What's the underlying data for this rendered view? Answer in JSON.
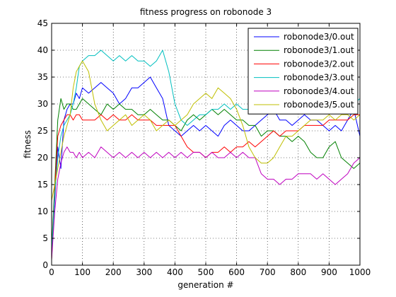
{
  "chart_data": {
    "type": "line",
    "title": "fitness progress on robonode 3",
    "xlabel": "generation #",
    "ylabel": "fitness",
    "xlim": [
      0,
      1000
    ],
    "ylim": [
      0,
      45
    ],
    "xticks": [
      "0",
      "100",
      "200",
      "300",
      "400",
      "500",
      "600",
      "700",
      "800",
      "900",
      "1000"
    ],
    "yticks": [
      "0",
      "5",
      "10",
      "15",
      "20",
      "25",
      "30",
      "35",
      "40",
      "45"
    ],
    "grid": true,
    "legend_position": "top-right",
    "series": [
      {
        "name": "robonode3/0.out",
        "color": "#0000ff",
        "x": [
          0,
          10,
          20,
          30,
          40,
          50,
          60,
          70,
          80,
          90,
          100,
          120,
          140,
          160,
          180,
          200,
          220,
          240,
          260,
          280,
          300,
          320,
          340,
          360,
          380,
          400,
          420,
          440,
          460,
          480,
          500,
          520,
          540,
          560,
          580,
          600,
          620,
          640,
          660,
          680,
          700,
          720,
          740,
          760,
          780,
          800,
          820,
          840,
          860,
          880,
          900,
          920,
          940,
          960,
          980,
          1000
        ],
        "y": [
          2,
          12,
          22,
          18,
          27,
          29,
          30,
          30,
          32,
          31,
          33,
          32,
          33,
          34,
          33,
          32,
          30,
          31,
          33,
          33,
          34,
          35,
          33,
          31,
          26,
          25,
          24,
          25,
          26,
          25,
          26,
          25,
          24,
          26,
          27,
          26,
          25,
          25,
          26,
          27,
          28,
          29,
          27,
          27,
          26,
          27,
          28,
          27,
          27,
          26,
          25,
          26,
          25,
          27,
          29,
          24
        ]
      },
      {
        "name": "robonode3/1.out",
        "color": "#008000",
        "x": [
          0,
          10,
          20,
          30,
          40,
          50,
          60,
          70,
          80,
          90,
          100,
          120,
          140,
          160,
          180,
          200,
          220,
          240,
          260,
          280,
          300,
          320,
          340,
          360,
          380,
          400,
          420,
          440,
          460,
          480,
          500,
          520,
          540,
          560,
          580,
          600,
          620,
          640,
          660,
          680,
          700,
          720,
          740,
          760,
          780,
          800,
          820,
          840,
          860,
          880,
          900,
          920,
          940,
          960,
          980,
          1000
        ],
        "y": [
          3,
          15,
          27,
          31,
          29,
          30,
          30,
          29,
          29,
          30,
          31,
          30,
          29,
          28,
          30,
          29,
          30,
          29,
          29,
          28,
          28,
          29,
          28,
          27,
          27,
          26,
          25,
          27,
          28,
          27,
          28,
          29,
          28,
          29,
          28,
          27,
          27,
          26,
          26,
          24,
          25,
          25,
          24,
          24,
          23,
          24,
          23,
          21,
          20,
          20,
          22,
          23,
          20,
          19,
          18,
          19
        ]
      },
      {
        "name": "robonode3/2.out",
        "color": "#ff0000",
        "x": [
          0,
          10,
          20,
          30,
          40,
          50,
          60,
          70,
          80,
          90,
          100,
          120,
          140,
          160,
          180,
          200,
          220,
          240,
          260,
          280,
          300,
          320,
          340,
          360,
          380,
          400,
          420,
          440,
          460,
          480,
          500,
          520,
          540,
          560,
          580,
          600,
          620,
          640,
          660,
          680,
          700,
          720,
          740,
          760,
          780,
          800,
          820,
          840,
          860,
          880,
          900,
          920,
          940,
          960,
          980,
          1000
        ],
        "y": [
          1,
          14,
          24,
          26,
          27,
          28,
          28,
          27,
          28,
          28,
          27,
          27,
          27,
          28,
          27,
          28,
          27,
          27,
          28,
          27,
          27,
          27,
          26,
          26,
          26,
          26,
          24,
          22,
          21,
          21,
          20,
          21,
          21,
          22,
          21,
          22,
          22,
          23,
          22,
          23,
          24,
          25,
          24,
          25,
          25,
          25,
          26,
          26,
          26,
          26,
          27,
          27,
          27,
          27,
          28,
          28
        ]
      },
      {
        "name": "robonode3/3.out",
        "color": "#00bfbf",
        "x": [
          0,
          10,
          20,
          30,
          40,
          50,
          60,
          70,
          80,
          90,
          100,
          120,
          140,
          160,
          180,
          200,
          220,
          240,
          260,
          280,
          300,
          320,
          340,
          360,
          380,
          400,
          420,
          440,
          460,
          480,
          500,
          520,
          540,
          560,
          580,
          600,
          620,
          640,
          660,
          680,
          700,
          720,
          740,
          760,
          780,
          800,
          820,
          840,
          860,
          880,
          900,
          920,
          940,
          960,
          980,
          1000
        ],
        "y": [
          2,
          13,
          20,
          24,
          26,
          27,
          28,
          30,
          33,
          37,
          38,
          39,
          39,
          40,
          39,
          38,
          39,
          38,
          39,
          38,
          38,
          37,
          38,
          40,
          36,
          30,
          27,
          26,
          27,
          28,
          28,
          29,
          29,
          30,
          29,
          30,
          29,
          29,
          30,
          31,
          30,
          30,
          29,
          30,
          29,
          30,
          30,
          31,
          30,
          30,
          31,
          30,
          31,
          30,
          30,
          31
        ]
      },
      {
        "name": "robonode3/4.out",
        "color": "#bf00bf",
        "x": [
          0,
          10,
          20,
          30,
          40,
          50,
          60,
          70,
          80,
          90,
          100,
          120,
          140,
          160,
          180,
          200,
          220,
          240,
          260,
          280,
          300,
          320,
          340,
          360,
          380,
          400,
          420,
          440,
          460,
          480,
          500,
          520,
          540,
          560,
          580,
          600,
          620,
          640,
          660,
          680,
          700,
          720,
          740,
          760,
          780,
          800,
          820,
          840,
          860,
          880,
          900,
          920,
          940,
          960,
          980,
          1000
        ],
        "y": [
          1,
          10,
          16,
          19,
          21,
          22,
          21,
          21,
          20,
          21,
          20,
          21,
          20,
          22,
          21,
          20,
          21,
          20,
          21,
          20,
          21,
          20,
          21,
          20,
          21,
          20,
          21,
          20,
          21,
          21,
          20,
          21,
          20,
          20,
          21,
          20,
          21,
          20,
          20,
          17,
          16,
          16,
          15,
          16,
          16,
          17,
          17,
          17,
          16,
          17,
          16,
          15,
          16,
          17,
          19,
          20
        ]
      },
      {
        "name": "robonode3/5.out",
        "color": "#bfbf00",
        "x": [
          0,
          10,
          20,
          30,
          40,
          50,
          60,
          70,
          80,
          90,
          100,
          120,
          140,
          160,
          180,
          200,
          220,
          240,
          260,
          280,
          300,
          320,
          340,
          360,
          380,
          400,
          420,
          440,
          460,
          480,
          500,
          520,
          540,
          560,
          580,
          600,
          620,
          640,
          660,
          680,
          700,
          720,
          740,
          760,
          780,
          800,
          820,
          840,
          860,
          880,
          900,
          920,
          940,
          960,
          980,
          1000
        ],
        "y": [
          12,
          15,
          18,
          21,
          24,
          26,
          28,
          33,
          36,
          37,
          38,
          36,
          30,
          27,
          25,
          26,
          27,
          28,
          26,
          27,
          28,
          27,
          25,
          26,
          27,
          26,
          27,
          28,
          30,
          31,
          32,
          31,
          33,
          32,
          31,
          29,
          26,
          22,
          20,
          19,
          19,
          20,
          22,
          24,
          24,
          25,
          26,
          27,
          27,
          27,
          28,
          27,
          28,
          28,
          27,
          28
        ]
      }
    ]
  }
}
